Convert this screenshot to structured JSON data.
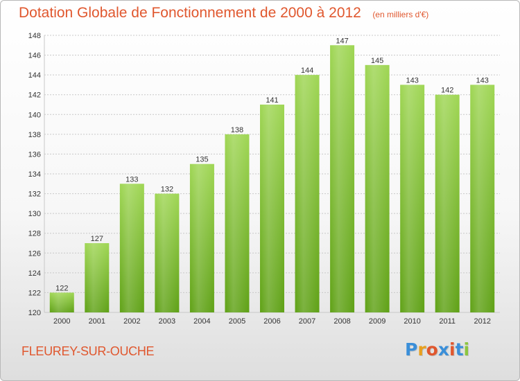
{
  "title": "Dotation Globale de Fonctionnement de 2000 à 2012",
  "unit_label": "(en milliers d'€)",
  "municipality": "FLEUREY-SUR-OUCHE",
  "logo": {
    "text": "Proxiti",
    "colors": [
      "#3a8fd9",
      "#e8a01f",
      "#e0572e",
      "#3a8fd9",
      "#e0572e",
      "#3a8fd9",
      "#8cc63f"
    ]
  },
  "colors": {
    "title": "#e0572e",
    "bar_light": "#9fd654",
    "bar_dark": "#5fa116",
    "grid": "#c8c8c8",
    "axis_text": "#333333"
  },
  "chart_data": {
    "type": "bar",
    "categories": [
      "2000",
      "2001",
      "2002",
      "2003",
      "2004",
      "2005",
      "2006",
      "2007",
      "2008",
      "2009",
      "2010",
      "2011",
      "2012"
    ],
    "values": [
      122,
      127,
      133,
      132,
      135,
      138,
      141,
      144,
      147,
      145,
      143,
      142,
      143
    ],
    "ylim": [
      120,
      148
    ],
    "yticks": [
      120,
      122,
      124,
      126,
      128,
      130,
      132,
      134,
      136,
      138,
      140,
      142,
      144,
      146,
      148
    ],
    "grid": true,
    "data_labels": true
  }
}
